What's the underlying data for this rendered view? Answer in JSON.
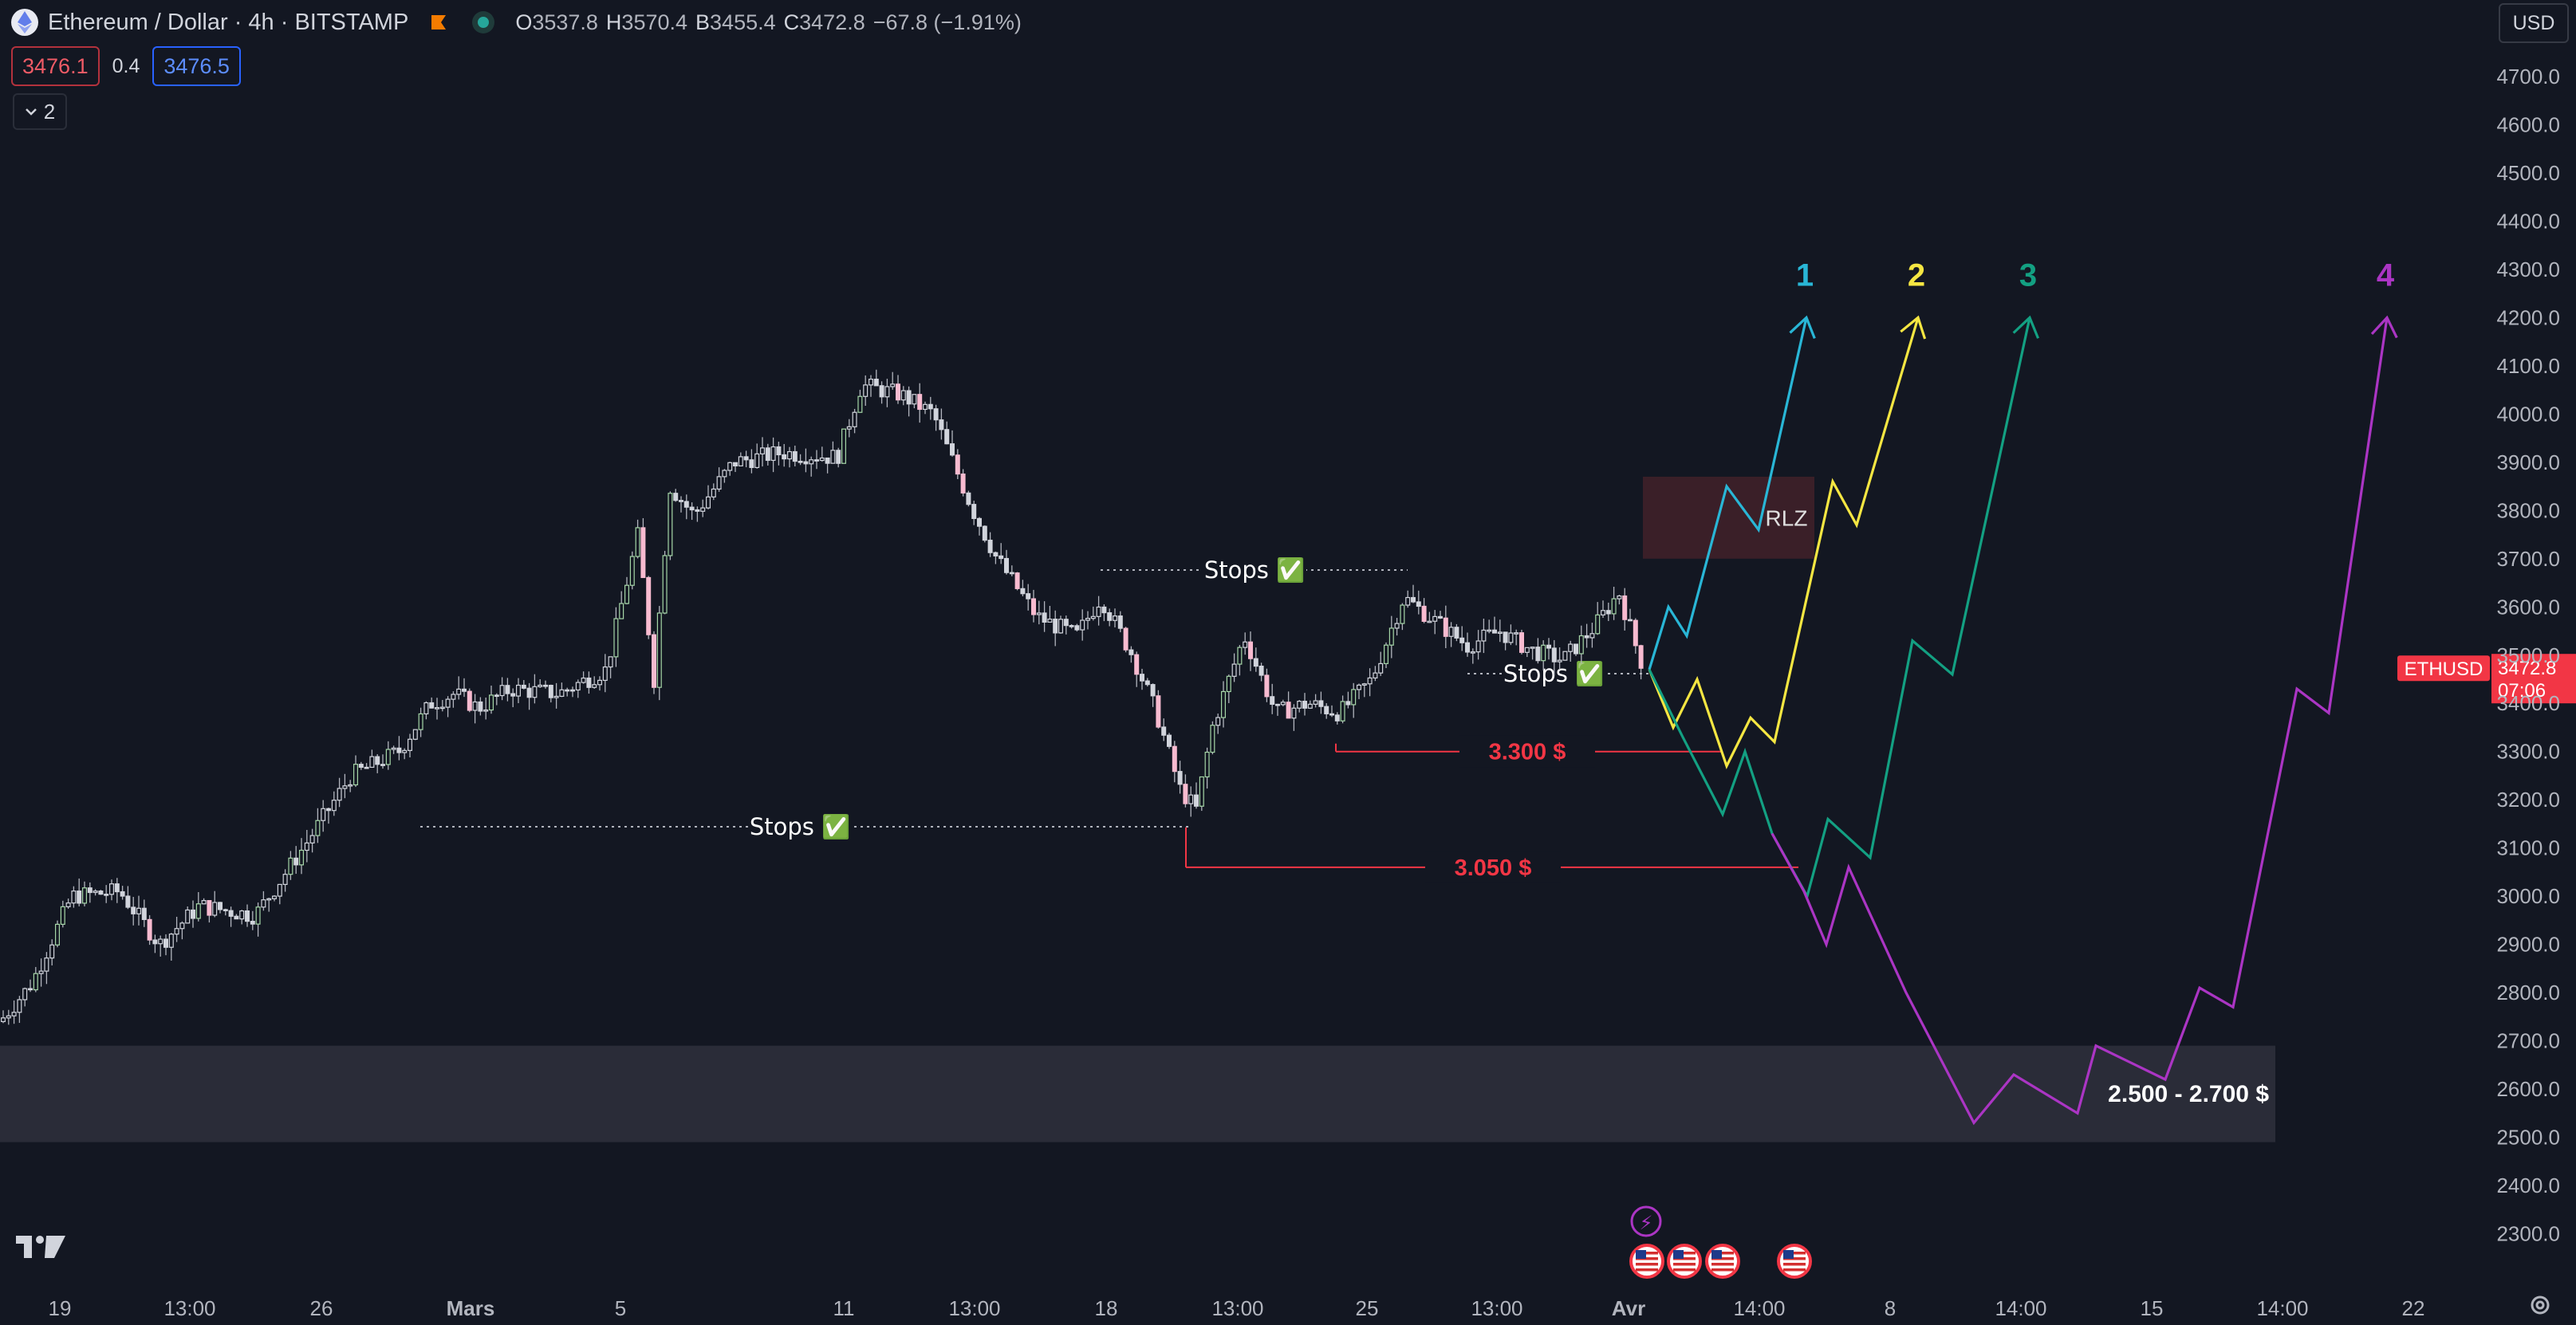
{
  "header": {
    "title": "Ethereum / Dollar · 4h · BITSTAMP",
    "ohlc": [
      {
        "k": "O",
        "v": "3537.8"
      },
      {
        "k": "H",
        "v": "3570.4"
      },
      {
        "k": "B",
        "v": "3455.4"
      },
      {
        "k": "C",
        "v": "3472.8"
      }
    ],
    "change": "−67.8 (−1.91%)",
    "sell_price": "3476.1",
    "spread": "0.4",
    "buy_price": "3476.5",
    "collapse_count": "2",
    "currency": "USD"
  },
  "colors": {
    "background": "#131722",
    "candle_up": "#a5d6a7",
    "candle_down": "#f8bbd0",
    "candle_neutral": "#d1d4dc",
    "level_red": "#f23645",
    "path_1": "#29b6d6",
    "path_2": "#f5e642",
    "path_3": "#13a082",
    "path_4": "#ab35c4",
    "rlz_zone": "#3a1f28",
    "support_zone": "#2a2c38",
    "price_tag": "#f23645"
  },
  "chart_data": {
    "type": "candlestick",
    "symbol": "ETHUSD",
    "interval": "4h",
    "ylim": [
      2250,
      4750
    ],
    "y_ticks": [
      "4700.0",
      "4600.0",
      "4500.0",
      "4400.0",
      "4300.0",
      "4200.0",
      "4100.0",
      "4000.0",
      "3900.0",
      "3800.0",
      "3700.0",
      "3600.0",
      "3500.0",
      "3400.0",
      "3300.0",
      "3200.0",
      "3100.0",
      "3000.0",
      "2900.0",
      "2800.0",
      "2700.0",
      "2600.0",
      "2500.0",
      "2400.0",
      "2300.0"
    ],
    "x_ticks": [
      "19",
      "13:00",
      "26",
      "Mars",
      "5",
      "11",
      "13:00",
      "18",
      "13:00",
      "25",
      "13:00",
      "Avr",
      "14:00",
      "8",
      "14:00",
      "15",
      "14:00",
      "22"
    ],
    "price_tag": {
      "label": "ETHUSD",
      "value": "3472.8",
      "countdown": "07:06"
    },
    "price_anchors": [
      [
        0,
        2740
      ],
      [
        40,
        2820
      ],
      [
        90,
        3000
      ],
      [
        150,
        3010
      ],
      [
        200,
        2900
      ],
      [
        250,
        2980
      ],
      [
        320,
        2960
      ],
      [
        380,
        3100
      ],
      [
        440,
        3250
      ],
      [
        500,
        3300
      ],
      [
        540,
        3400
      ],
      [
        570,
        3420
      ],
      [
        600,
        3390
      ],
      [
        640,
        3430
      ],
      [
        700,
        3420
      ],
      [
        760,
        3470
      ],
      [
        800,
        3750
      ],
      [
        820,
        3450
      ],
      [
        840,
        3850
      ],
      [
        870,
        3790
      ],
      [
        920,
        3900
      ],
      [
        980,
        3920
      ],
      [
        1050,
        3910
      ],
      [
        1080,
        4060
      ],
      [
        1130,
        4040
      ],
      [
        1170,
        4000
      ],
      [
        1220,
        3800
      ],
      [
        1250,
        3700
      ],
      [
        1300,
        3580
      ],
      [
        1350,
        3540
      ],
      [
        1380,
        3620
      ],
      [
        1420,
        3500
      ],
      [
        1450,
        3380
      ],
      [
        1480,
        3220
      ],
      [
        1500,
        3180
      ],
      [
        1520,
        3350
      ],
      [
        1560,
        3540
      ],
      [
        1600,
        3380
      ],
      [
        1640,
        3400
      ],
      [
        1680,
        3380
      ],
      [
        1720,
        3450
      ],
      [
        1760,
        3620
      ],
      [
        1800,
        3570
      ],
      [
        1840,
        3520
      ],
      [
        1880,
        3550
      ],
      [
        1920,
        3510
      ],
      [
        1960,
        3490
      ],
      [
        2000,
        3560
      ],
      [
        2030,
        3630
      ],
      [
        2060,
        3472.8
      ]
    ],
    "levels": [
      {
        "label": "3.300 $",
        "y": 3300
      },
      {
        "label": "3.050 $",
        "y": 3060
      }
    ],
    "stops_label": "Stops ✅",
    "zones": [
      {
        "label": "RLZ",
        "y": [
          3700,
          3870
        ]
      },
      {
        "label": "2.500 - 2.700 $",
        "y": [
          2490,
          2690
        ]
      }
    ],
    "projections": [
      {
        "label": "1",
        "points": [
          [
            2068,
            3470
          ],
          [
            2092,
            3600
          ],
          [
            2115,
            3540
          ],
          [
            2165,
            3850
          ],
          [
            2205,
            3760
          ],
          [
            2265,
            4200
          ]
        ]
      },
      {
        "label": "2",
        "points": [
          [
            2068,
            3470
          ],
          [
            2098,
            3350
          ],
          [
            2128,
            3450
          ],
          [
            2165,
            3270
          ],
          [
            2195,
            3370
          ],
          [
            2225,
            3320
          ],
          [
            2298,
            3860
          ],
          [
            2328,
            3770
          ],
          [
            2405,
            4200
          ]
        ]
      },
      {
        "label": "3",
        "points": [
          [
            2068,
            3470
          ],
          [
            2110,
            3330
          ],
          [
            2160,
            3170
          ],
          [
            2188,
            3300
          ],
          [
            2222,
            3130
          ],
          [
            2266,
            3000
          ],
          [
            2292,
            3160
          ],
          [
            2345,
            3080
          ],
          [
            2398,
            3530
          ],
          [
            2448,
            3460
          ],
          [
            2545,
            4200
          ]
        ]
      },
      {
        "label": "4",
        "points": [
          [
            2222,
            3130
          ],
          [
            2262,
            3010
          ],
          [
            2290,
            2900
          ],
          [
            2318,
            3060
          ],
          [
            2390,
            2800
          ],
          [
            2475,
            2530
          ],
          [
            2525,
            2630
          ],
          [
            2605,
            2550
          ],
          [
            2628,
            2690
          ],
          [
            2715,
            2620
          ],
          [
            2758,
            2810
          ],
          [
            2800,
            2770
          ],
          [
            2880,
            3430
          ],
          [
            2920,
            3380
          ],
          [
            2993,
            4200
          ]
        ]
      }
    ],
    "event_markers": [
      "⚡",
      "🇺🇸"
    ]
  }
}
